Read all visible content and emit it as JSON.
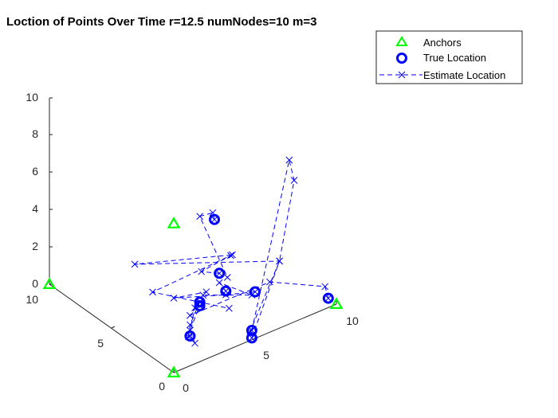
{
  "chart_data": {
    "type": "scatter",
    "title": "Loction of Points Over Time r=12.5 numNodes=10 m=3",
    "xlabel": "",
    "ylabel": "",
    "zlabel": "",
    "xlim": [
      0,
      10
    ],
    "ylim": [
      0,
      10
    ],
    "zlim": [
      0,
      10
    ],
    "x_ticks": [
      "0",
      "5",
      "10"
    ],
    "y_ticks": [
      "0",
      "5",
      "10"
    ],
    "z_ticks": [
      "0",
      "2",
      "4",
      "6",
      "8",
      "10"
    ],
    "grid": false,
    "legend_position": "top-right",
    "colors": {
      "anchors": "#00ff00",
      "true_location": "#0000ff",
      "estimate_location": "#0000ff",
      "axis": "#262626"
    },
    "series": [
      {
        "name": "Anchors",
        "marker": "triangle",
        "points": [
          {
            "x": 0.0,
            "y": 0.0,
            "z": 0.0
          },
          {
            "x": 10.0,
            "y": 0.0,
            "z": 0.0
          },
          {
            "x": 0.0,
            "y": 10.0,
            "z": 0.0
          },
          {
            "x": 0.0,
            "y": 0.0,
            "z": 8.0
          }
        ]
      },
      {
        "name": "True Location",
        "marker": "circle",
        "points": [
          {
            "x": 2.8,
            "y": 0.0,
            "z": 4.3
          },
          {
            "x": 9.5,
            "y": 0.0,
            "z": 0.5
          },
          {
            "x": 4.8,
            "y": 0.0,
            "z": 0.5
          },
          {
            "x": 4.8,
            "y": 0.0,
            "z": 0.1
          },
          {
            "x": 3.2,
            "y": 0.0,
            "z": 3.2
          },
          {
            "x": 5.0,
            "y": 0.0,
            "z": 2.5
          },
          {
            "x": 1.6,
            "y": 0.0,
            "z": 3.2
          },
          {
            "x": 1.6,
            "y": 0.0,
            "z": 3.0
          },
          {
            "x": 1.0,
            "y": 0.0,
            "z": 1.6
          },
          {
            "x": 2.5,
            "y": 0.0,
            "z": 7.3
          }
        ]
      },
      {
        "name": "Estimate Location",
        "marker": "x",
        "line": "dashed",
        "segments": [
          [
            {
              "x": 2.5,
              "y": 0.0,
              "z": 7.3
            },
            {
              "x": 2.4,
              "y": 0.0,
              "z": 7.7
            },
            {
              "x": 1.6,
              "y": 0.0,
              "z": 7.8
            },
            {
              "x": 3.3,
              "y": 0.0,
              "z": 3.9
            }
          ],
          [
            {
              "x": 9.5,
              "y": 0.0,
              "z": 0.5
            },
            {
              "x": 9.3,
              "y": 0.0,
              "z": 1.2
            },
            {
              "x": 5.9,
              "y": 0.0,
              "z": 2.7
            },
            {
              "x": 1.0,
              "y": 0.0,
              "z": 2.7
            },
            {
              "x": 1.6,
              "y": 0.0,
              "z": 3.2
            }
          ],
          [
            {
              "x": 4.8,
              "y": 0.0,
              "z": 0.5
            },
            {
              "x": 7.1,
              "y": 0.0,
              "z": 8.8
            },
            {
              "x": 7.4,
              "y": 0.0,
              "z": 7.6
            },
            {
              "x": 6.5,
              "y": 0.0,
              "z": 3.6
            },
            {
              "x": 4.7,
              "y": 0.0,
              "z": 0.5
            }
          ],
          [
            {
              "x": 4.8,
              "y": 0.0,
              "z": 0.1
            },
            {
              "x": 6.5,
              "y": 0.0,
              "z": 3.6
            },
            {
              "x": -2.4,
              "y": 0.0,
              "z": 6.7
            },
            {
              "x": 3.6,
              "y": 0.0,
              "z": 5.0
            }
          ],
          [
            {
              "x": 2.8,
              "y": 0.0,
              "z": 4.3
            },
            {
              "x": 1.7,
              "y": 0.0,
              "z": 4.8
            },
            {
              "x": 3.5,
              "y": 0.0,
              "z": 5.0
            },
            {
              "x": -1.3,
              "y": 0.0,
              "z": 4.8
            },
            {
              "x": 3.4,
              "y": 0.0,
              "z": 2.2
            }
          ],
          [
            {
              "x": 5.0,
              "y": 0.0,
              "z": 2.5
            },
            {
              "x": 3.2,
              "y": 0.0,
              "z": 3.0
            },
            {
              "x": 0.0,
              "y": 0.0,
              "z": 4.0
            },
            {
              "x": 2.0,
              "y": 0.0,
              "z": 3.6
            }
          ],
          [
            {
              "x": 3.2,
              "y": 0.0,
              "z": 3.2
            },
            {
              "x": 2.8,
              "y": 0.0,
              "z": 3.8
            },
            {
              "x": 4.8,
              "y": 0.0,
              "z": 2.4
            },
            {
              "x": 1.8,
              "y": 0.0,
              "z": 3.5
            }
          ],
          [
            {
              "x": 1.6,
              "y": 0.0,
              "z": 3.2
            },
            {
              "x": 1.0,
              "y": 0.0,
              "z": 2.2
            },
            {
              "x": 0.9,
              "y": 0.0,
              "z": 1.6
            },
            {
              "x": 1.3,
              "y": 0.0,
              "z": 3.0
            }
          ],
          [
            {
              "x": 1.0,
              "y": 0.0,
              "z": 1.6
            },
            {
              "x": 1.3,
              "y": 0.0,
              "z": 1.1
            },
            {
              "x": 1.0,
              "y": 0.0,
              "z": 1.9
            },
            {
              "x": 1.6,
              "y": 0.0,
              "z": 3.0
            }
          ]
        ]
      }
    ]
  }
}
